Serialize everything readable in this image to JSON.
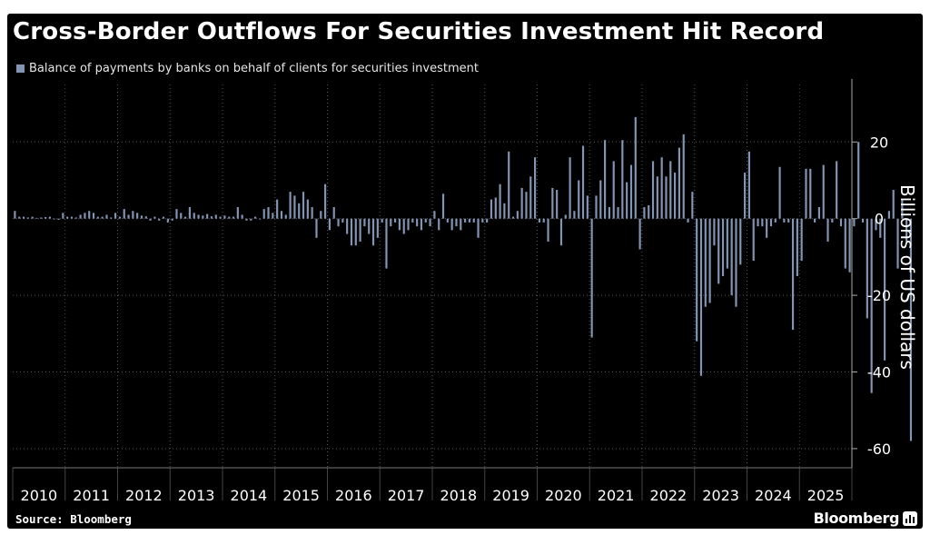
{
  "title": "Cross-Border Outflows For Securities Investment Hit Record",
  "source": "Source: Bloomberg",
  "brand": "Bloomberg",
  "colors": {
    "background": "#000000",
    "bar": "#8395b5",
    "grid": "#555555",
    "text": "#ffffff"
  },
  "chart_data": {
    "type": "bar",
    "title": "Cross-Border Outflows For Securities Investment Hit Record",
    "legend": [
      "Balance of payments by banks on behalf of clients for securities investment"
    ],
    "legend_position": "top-left",
    "ylabel": "Billions of US dollars",
    "xlabel": "",
    "ylim": [
      -65,
      35
    ],
    "yticks": [
      20,
      0,
      -20,
      -40,
      -60
    ],
    "ytick_labels": [
      "20",
      "0",
      "-20",
      "-40",
      "-60"
    ],
    "year_labels": [
      "2010",
      "2011",
      "2012",
      "2013",
      "2014",
      "2015",
      "2016",
      "2017",
      "2018",
      "2019",
      "2020",
      "2021",
      "2022",
      "2023",
      "2024",
      "2025"
    ],
    "start": "2010-01",
    "frequency": "monthly",
    "grid": true,
    "series": [
      {
        "name": "Balance of payments by banks on behalf of clients for securities investment",
        "values": [
          2,
          0.5,
          0.5,
          0.3,
          0.5,
          0.2,
          0.3,
          0.4,
          0.5,
          -0.2,
          -0.3,
          1.5,
          0.5,
          0.5,
          0.3,
          1,
          1.5,
          2,
          1.5,
          0.5,
          0.5,
          1,
          0.3,
          1.5,
          0.5,
          2.5,
          1,
          2,
          1.5,
          0.8,
          0.6,
          -0.5,
          0.5,
          -0.5,
          0.5,
          -1,
          -0.5,
          2.5,
          1.5,
          0.5,
          3,
          1.5,
          1,
          0.8,
          1.2,
          0.6,
          1,
          0.5,
          0.8,
          0.5,
          0.5,
          3,
          1,
          -0.5,
          -0.5,
          0.5,
          -0.2,
          2.5,
          3,
          1.5,
          5,
          2,
          1,
          7,
          6,
          4,
          7,
          5,
          3,
          -5,
          2,
          9,
          -3,
          3,
          -2,
          -1,
          -4,
          -7,
          -7,
          -6,
          -2,
          -4,
          -7,
          -5,
          -1,
          -13,
          -2,
          -1,
          -3,
          -4,
          -3,
          -1,
          -2,
          -3,
          -1,
          -2,
          2,
          -3,
          6.5,
          -1,
          -3,
          -2,
          -3,
          -1,
          -1,
          -1,
          -5,
          -1,
          -1,
          5,
          5.5,
          9,
          4,
          17.5,
          0.5,
          2,
          8,
          7,
          11,
          16,
          -1,
          -1,
          -6,
          8,
          7.5,
          -7,
          1,
          16,
          2,
          10,
          19,
          6,
          -31,
          6,
          10,
          20.5,
          3,
          15,
          3,
          20.5,
          9.5,
          14,
          26.5,
          -8,
          3,
          3.5,
          15,
          11,
          16,
          11,
          15,
          12,
          18.5,
          22,
          -1,
          7,
          -32,
          -41,
          -23,
          -22,
          -7,
          -17,
          -15,
          -13,
          -20,
          -23,
          -12,
          12,
          17.5,
          -11,
          -2,
          -2,
          -5,
          -2,
          -1,
          13.5,
          -1,
          -1,
          -29,
          -15,
          -11,
          13,
          13,
          -1,
          3,
          14,
          -6,
          -1,
          15,
          -2,
          -13,
          -14,
          -2,
          20,
          -1,
          -26,
          -45.5,
          -3,
          -5,
          -37,
          2,
          7.5,
          -13,
          5,
          -6,
          -58
        ]
      }
    ]
  }
}
